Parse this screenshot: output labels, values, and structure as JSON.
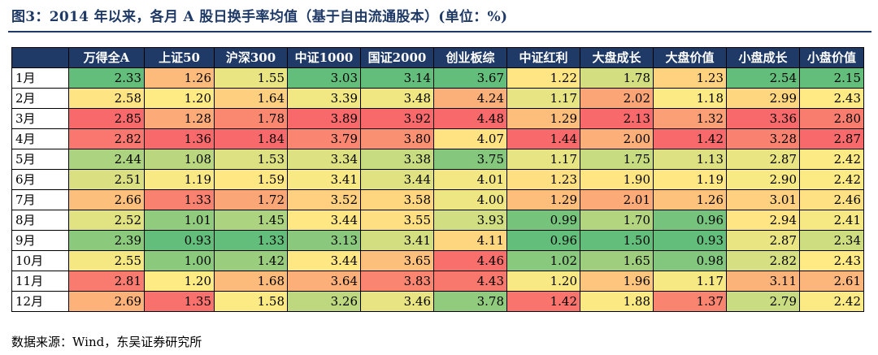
{
  "title": "图3：2014 年以来，各月 A 股日换手率均值（基于自由流通股本）(单位：%)",
  "source": "数据来源：Wind，东吴证券研究所",
  "chart_data": {
    "type": "table",
    "corner_header": "",
    "columns": [
      "万得全A",
      "上证50",
      "沪深300",
      "中证1000",
      "国证2000",
      "创业板综",
      "中证红利",
      "大盘成长",
      "大盘价值",
      "小盘成长",
      "小盘价值"
    ],
    "rows": [
      {
        "label": "1月",
        "values": [
          "2.33",
          "1.26",
          "1.55",
          "3.03",
          "3.14",
          "3.67",
          "1.22",
          "1.78",
          "1.23",
          "2.54",
          "2.15"
        ]
      },
      {
        "label": "2月",
        "values": [
          "2.58",
          "1.20",
          "1.64",
          "3.39",
          "3.48",
          "4.24",
          "1.17",
          "2.02",
          "1.18",
          "2.99",
          "2.43"
        ]
      },
      {
        "label": "3月",
        "values": [
          "2.85",
          "1.28",
          "1.78",
          "3.89",
          "3.92",
          "4.48",
          "1.29",
          "2.13",
          "1.32",
          "3.36",
          "2.80"
        ]
      },
      {
        "label": "4月",
        "values": [
          "2.82",
          "1.36",
          "1.84",
          "3.79",
          "3.80",
          "4.07",
          "1.44",
          "2.00",
          "1.42",
          "3.28",
          "2.87"
        ]
      },
      {
        "label": "5月",
        "values": [
          "2.44",
          "1.08",
          "1.53",
          "3.34",
          "3.38",
          "3.75",
          "1.17",
          "1.75",
          "1.13",
          "2.87",
          "2.42"
        ]
      },
      {
        "label": "6月",
        "values": [
          "2.51",
          "1.19",
          "1.59",
          "3.41",
          "3.44",
          "4.01",
          "1.23",
          "1.90",
          "1.19",
          "2.90",
          "2.42"
        ]
      },
      {
        "label": "7月",
        "values": [
          "2.66",
          "1.33",
          "1.72",
          "3.52",
          "3.58",
          "4.00",
          "1.29",
          "2.01",
          "1.26",
          "3.01",
          "2.46"
        ]
      },
      {
        "label": "8月",
        "values": [
          "2.52",
          "1.01",
          "1.45",
          "3.44",
          "3.55",
          "3.93",
          "0.99",
          "1.70",
          "0.96",
          "2.94",
          "2.41"
        ]
      },
      {
        "label": "9月",
        "values": [
          "2.39",
          "0.93",
          "1.33",
          "3.13",
          "3.41",
          "4.11",
          "0.96",
          "1.50",
          "0.93",
          "2.87",
          "2.34"
        ]
      },
      {
        "label": "10月",
        "values": [
          "2.55",
          "1.00",
          "1.42",
          "3.44",
          "3.65",
          "4.46",
          "1.02",
          "1.65",
          "0.98",
          "2.82",
          "2.43"
        ]
      },
      {
        "label": "11月",
        "values": [
          "2.81",
          "1.20",
          "1.68",
          "3.64",
          "3.83",
          "4.43",
          "1.20",
          "1.96",
          "1.17",
          "3.11",
          "2.61"
        ]
      },
      {
        "label": "12月",
        "values": [
          "2.69",
          "1.35",
          "1.58",
          "3.26",
          "3.46",
          "3.78",
          "1.42",
          "1.88",
          "1.37",
          "2.79",
          "2.42"
        ]
      }
    ],
    "color_scale": {
      "low": "#63be7b",
      "mid": "#ffeb84",
      "high": "#f8696b",
      "direction": "per-column"
    },
    "header_color": "#1f3a67"
  }
}
